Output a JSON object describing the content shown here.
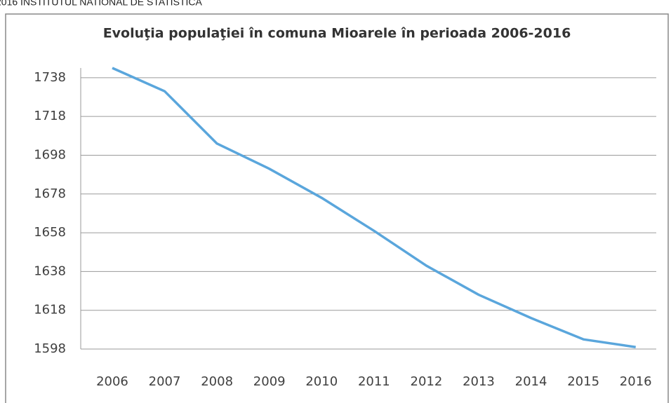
{
  "source": "2016 INSTITUTUL NATIONAL DE STATISTICA",
  "chart_data": {
    "type": "line",
    "title": "Evoluţia populaţiei în comuna Mioarele în perioada 2006-2016",
    "categories": [
      "2006",
      "2007",
      "2008",
      "2009",
      "2010",
      "2011",
      "2012",
      "2013",
      "2014",
      "2015",
      "2016"
    ],
    "values": [
      1743,
      1731,
      1704,
      1691,
      1676,
      1659,
      1641,
      1626,
      1614,
      1603,
      1599
    ],
    "color": "#5aa6dc",
    "ylim": [
      1598,
      1743
    ],
    "yticks": [
      1598,
      1618,
      1638,
      1658,
      1678,
      1698,
      1718,
      1738
    ],
    "grid": true
  }
}
